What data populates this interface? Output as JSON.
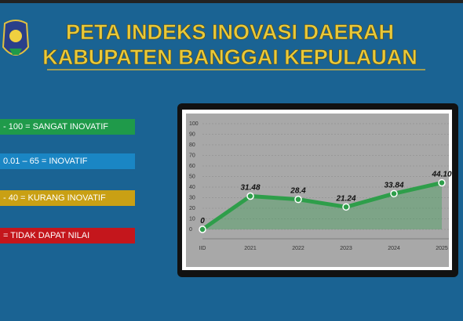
{
  "header": {
    "title_line1": "PETA INDEKS INOVASI DAERAH",
    "title_line2": "KABUPATEN BANGGAI KEPULAUAN"
  },
  "legend_items": [
    {
      "label": "- 100 = SANGAT INOVATIF",
      "color": "#1f9a4a"
    },
    {
      "label": "0.01 – 65 = INOVATIF",
      "color": "#1a86c4"
    },
    {
      "label": "- 40 = KURANG INOVATIF",
      "color": "#c9a014"
    },
    {
      "label": "= TIDAK DAPAT NILAI",
      "color": "#c4161c"
    }
  ],
  "chart_data": {
    "type": "line",
    "categories": [
      "IID",
      "2021",
      "2022",
      "2023",
      "2024",
      "2025"
    ],
    "values": [
      0,
      31.48,
      28.4,
      21.24,
      33.84,
      44.1
    ],
    "value_labels": [
      "0",
      "31.48",
      "28.4",
      "21.24",
      "33.84",
      "44.10"
    ],
    "color": "#2e9e4a",
    "ylim": [
      0,
      100
    ],
    "yticks": [
      0,
      10,
      20,
      30,
      40,
      50,
      60,
      70,
      80,
      90,
      100
    ],
    "grid": true
  }
}
